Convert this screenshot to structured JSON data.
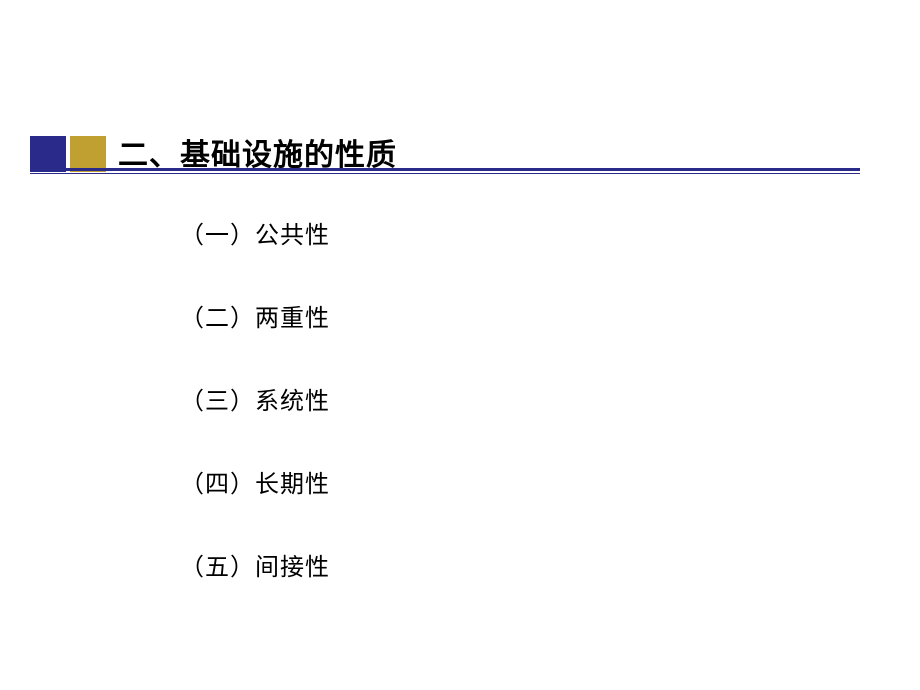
{
  "slide": {
    "title": "二、基础设施的性质",
    "items": [
      "（一）公共性",
      "（二）两重性",
      "（三）系统性",
      "（四）长期性",
      "（五）间接性"
    ]
  },
  "colors": {
    "box_dark": "#2a2a8a",
    "box_gold": "#c0a030",
    "text": "#000000",
    "background": "#ffffff"
  },
  "typography": {
    "title_fontsize": 30,
    "title_weight": "bold",
    "item_fontsize": 24,
    "font_family": "SimSun"
  }
}
